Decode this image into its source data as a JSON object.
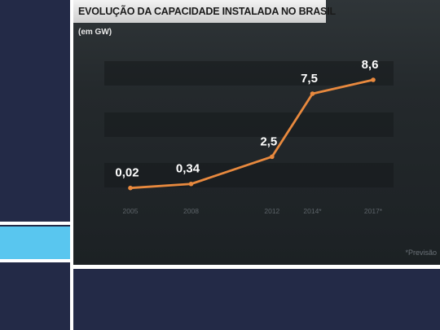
{
  "chart_data": {
    "type": "line",
    "title": "EVOLUÇÃO DA CAPACIDADE INSTALADA NO BRASIL",
    "subtitle": "(em GW)",
    "categories": [
      "2005",
      "2008",
      "2012",
      "2014*",
      "2017*"
    ],
    "values": [
      0.02,
      0.34,
      2.5,
      7.5,
      8.6
    ],
    "value_labels": [
      "0,02",
      "0,34",
      "2,5",
      "7,5",
      "8,6"
    ],
    "x_years": [
      2005,
      2008,
      2012,
      2014,
      2017
    ],
    "footnote": "*Previsão",
    "line_color": "#e8893e",
    "grid": false
  },
  "colors": {
    "background": "#232a47",
    "accent": "#59c6ef",
    "divider": "#ffffff"
  }
}
